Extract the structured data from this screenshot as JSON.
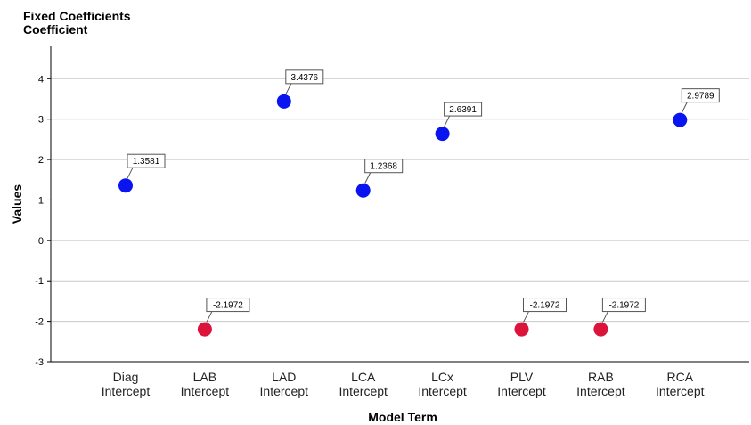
{
  "header": {
    "title": "Fixed Coefficients",
    "subtitle": "Coefficient"
  },
  "chart_data": {
    "type": "scatter",
    "title": "Fixed Coefficients",
    "subtitle": "Coefficient",
    "xlabel": "Model Term",
    "ylabel": "Values",
    "ylim": [
      -3,
      4.8
    ],
    "yticks": [
      -3,
      -2,
      -1,
      0,
      1,
      2,
      3,
      4
    ],
    "grid": true,
    "legend": "none",
    "categories": [
      [
        "Diag",
        "Intercept"
      ],
      [
        "LAB",
        "Intercept"
      ],
      [
        "LAD",
        "Intercept"
      ],
      [
        "LCA",
        "Intercept"
      ],
      [
        "LCx",
        "Intercept"
      ],
      [
        "PLV",
        "Intercept"
      ],
      [
        "RAB",
        "Intercept"
      ],
      [
        "RCA",
        "Intercept"
      ]
    ],
    "points": [
      {
        "category_index": 0,
        "value": 1.3581,
        "label": "1.3581",
        "color": "#0a14f0"
      },
      {
        "category_index": 1,
        "value": -2.1972,
        "label": "-2.1972",
        "color": "#dc143c"
      },
      {
        "category_index": 2,
        "value": 3.4376,
        "label": "3.4376",
        "color": "#0a14f0"
      },
      {
        "category_index": 3,
        "value": 1.2368,
        "label": "1.2368",
        "color": "#0a14f0"
      },
      {
        "category_index": 4,
        "value": 2.6391,
        "label": "2.6391",
        "color": "#0a14f0"
      },
      {
        "category_index": 5,
        "value": -2.1972,
        "label": "-2.1972",
        "color": "#dc143c"
      },
      {
        "category_index": 6,
        "value": -2.1972,
        "label": "-2.1972",
        "color": "#dc143c"
      },
      {
        "category_index": 7,
        "value": 2.9789,
        "label": "2.9789",
        "color": "#0a14f0"
      }
    ]
  }
}
